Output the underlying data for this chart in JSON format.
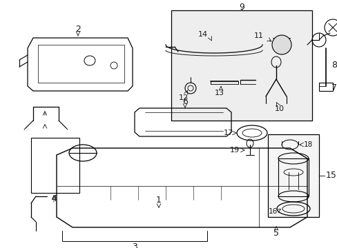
{
  "bg_color": "#ffffff",
  "line_color": "#1a1a1a",
  "fig_width": 4.89,
  "fig_height": 3.6,
  "dpi": 100,
  "font_size": 9
}
